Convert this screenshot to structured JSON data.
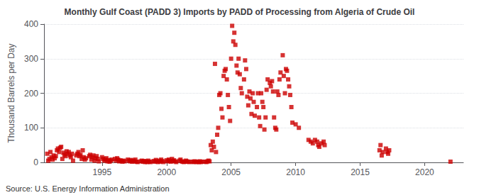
{
  "chart_data": {
    "type": "scatter",
    "title": "Monthly Gulf Coast (PADD 3) Imports by PADD of Processing from Algeria of Crude Oil",
    "ylabel": "Thousand Barrels per Day",
    "annotations": [
      "Source: U.S. Energy Information Administration"
    ],
    "color": "#CC0000",
    "marker": "square",
    "grid": true,
    "xlim": [
      1990.5,
      2023
    ],
    "xticks": [
      1995,
      2000,
      2005,
      2010,
      2015,
      2020
    ],
    "ylim": [
      0,
      400
    ],
    "yticks": [
      0,
      100,
      200,
      300,
      400
    ],
    "x": [
      1990.75,
      1990.83,
      1990.92,
      1991.0,
      1991.08,
      1991.17,
      1991.25,
      1991.33,
      1991.42,
      1991.5,
      1991.58,
      1991.67,
      1991.75,
      1991.83,
      1991.92,
      1992.0,
      1992.08,
      1992.17,
      1992.25,
      1992.33,
      1992.42,
      1992.5,
      1992.58,
      1992.67,
      1992.75,
      1993.0,
      1993.08,
      1993.17,
      1993.25,
      1993.33,
      1993.42,
      1993.5,
      1993.58,
      1993.67,
      1993.75,
      1994.0,
      1994.08,
      1994.17,
      1994.25,
      1994.33,
      1994.42,
      1994.5,
      1994.58,
      1994.67,
      1994.75,
      1995.0,
      1995.08,
      1995.17,
      1995.25,
      1995.33,
      1995.42,
      1995.5,
      1995.58,
      1995.67,
      1995.75,
      1996.0,
      1996.08,
      1996.17,
      1996.25,
      1996.33,
      1996.42,
      1996.5,
      1996.58,
      1996.67,
      1996.75,
      1997.0,
      1997.08,
      1997.17,
      1997.25,
      1997.33,
      1997.42,
      1997.5,
      1997.58,
      1997.67,
      1997.75,
      1998.0,
      1998.08,
      1998.17,
      1998.25,
      1998.33,
      1998.42,
      1998.5,
      1998.58,
      1998.67,
      1998.75,
      1999.0,
      1999.08,
      1999.17,
      1999.25,
      1999.33,
      1999.42,
      1999.5,
      1999.58,
      1999.67,
      1999.75,
      2000.0,
      2000.08,
      2000.17,
      2000.25,
      2000.33,
      2000.42,
      2000.5,
      2000.58,
      2000.67,
      2000.75,
      2001.0,
      2001.08,
      2001.17,
      2001.25,
      2001.33,
      2001.42,
      2001.5,
      2001.58,
      2001.67,
      2001.75,
      2002.0,
      2002.08,
      2002.17,
      2002.25,
      2002.33,
      2002.42,
      2002.5,
      2002.58,
      2002.67,
      2002.75,
      2003.0,
      2003.08,
      2003.17,
      2003.25,
      2003.33,
      2003.42,
      2003.5,
      2003.58,
      2003.67,
      2003.75,
      2003.83,
      2003.92,
      2004.0,
      2004.08,
      2004.17,
      2004.25,
      2004.33,
      2004.42,
      2004.5,
      2004.58,
      2004.67,
      2004.75,
      2004.83,
      2004.92,
      2005.0,
      2005.08,
      2005.17,
      2005.25,
      2005.33,
      2005.42,
      2005.5,
      2005.58,
      2005.67,
      2005.75,
      2005.83,
      2006.0,
      2006.08,
      2006.17,
      2006.25,
      2006.33,
      2006.42,
      2006.5,
      2006.58,
      2006.67,
      2006.75,
      2006.83,
      2007.0,
      2007.08,
      2007.17,
      2007.25,
      2007.33,
      2007.42,
      2007.5,
      2007.58,
      2007.67,
      2007.75,
      2007.83,
      2008.0,
      2008.08,
      2008.17,
      2008.25,
      2008.33,
      2008.42,
      2008.5,
      2008.58,
      2008.67,
      2008.75,
      2008.83,
      2009.0,
      2009.08,
      2009.17,
      2009.25,
      2009.33,
      2009.42,
      2009.5,
      2009.58,
      2009.67,
      2009.75,
      2010.0,
      2010.25,
      2011.0,
      2011.17,
      2011.33,
      2011.5,
      2011.67,
      2011.75,
      2011.83,
      2012.0,
      2012.17,
      2012.25,
      2016.5,
      2016.58,
      2016.67,
      2016.75,
      2017.0,
      2017.08,
      2017.17,
      2017.25,
      2022.0
    ],
    "values": [
      25,
      5,
      10,
      30,
      15,
      8,
      20,
      12,
      18,
      35,
      40,
      30,
      42,
      45,
      10,
      28,
      22,
      18,
      32,
      25,
      30,
      20,
      15,
      25,
      5,
      20,
      25,
      30,
      18,
      22,
      10,
      35,
      15,
      8,
      12,
      18,
      22,
      8,
      15,
      20,
      5,
      12,
      18,
      10,
      3,
      15,
      10,
      5,
      8,
      12,
      3,
      7,
      2,
      5,
      8,
      10,
      5,
      12,
      8,
      3,
      6,
      4,
      2,
      5,
      3,
      8,
      5,
      3,
      7,
      2,
      5,
      3,
      8,
      2,
      1,
      3,
      5,
      2,
      4,
      1,
      3,
      1,
      5,
      2,
      1,
      4,
      2,
      7,
      3,
      1,
      5,
      2,
      8,
      4,
      1,
      6,
      3,
      8,
      5,
      2,
      10,
      4,
      6,
      3,
      1,
      5,
      8,
      3,
      2,
      1,
      2,
      5,
      3,
      2,
      1,
      2,
      1,
      3,
      2,
      1,
      2,
      1,
      3,
      1,
      2,
      2,
      1,
      3,
      5,
      3,
      50,
      35,
      60,
      45,
      285,
      30,
      80,
      100,
      195,
      200,
      155,
      130,
      250,
      265,
      270,
      240,
      195,
      160,
      120,
      300,
      395,
      350,
      375,
      340,
      280,
      260,
      300,
      255,
      215,
      200,
      240,
      295,
      270,
      190,
      165,
      205,
      185,
      140,
      200,
      175,
      135,
      160,
      200,
      130,
      105,
      200,
      175,
      160,
      95,
      130,
      210,
      240,
      230,
      220,
      235,
      205,
      130,
      100,
      95,
      205,
      195,
      240,
      260,
      310,
      250,
      200,
      270,
      265,
      240,
      220,
      195,
      160,
      115,
      110,
      100,
      65,
      60,
      55,
      65,
      60,
      50,
      45,
      55,
      60,
      50,
      35,
      50,
      20,
      30,
      40,
      30,
      25,
      35,
      2
    ]
  }
}
